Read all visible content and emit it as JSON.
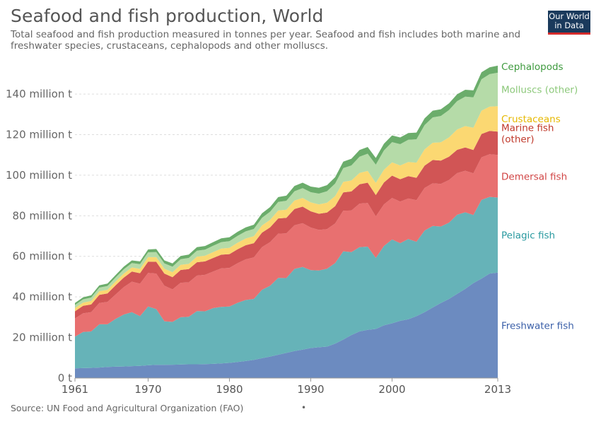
{
  "title": "Seafood and fish production, World",
  "subtitle": "Total seafood and fish production measured in tonnes per year. Seafood and fish includes both marine and freshwater species, crustaceans, cephalopods and other molluscs.",
  "logo": {
    "line1": "Our World",
    "line2": "in Data",
    "bg": "#1a3a5c",
    "accent": "#d42b2b"
  },
  "source": "Source: UN Food and Agricultural Organization (FAO)",
  "dot": "•",
  "chart_data": {
    "type": "area",
    "stacked": true,
    "x_ticks": [
      "1961",
      "1970",
      "1980",
      "1990",
      "2000",
      "2013"
    ],
    "y_ticks": [
      "0 t",
      "20 million t",
      "40 million t",
      "60 million t",
      "80 million t",
      "100 million t",
      "120 million t",
      "140 million t"
    ],
    "y_tick_values": [
      0,
      20,
      40,
      60,
      80,
      100,
      120,
      140
    ],
    "xlim": [
      1961,
      2013
    ],
    "ylim": [
      0,
      155
    ],
    "grid": true,
    "x": [
      1961,
      1962,
      1963,
      1964,
      1965,
      1966,
      1967,
      1968,
      1969,
      1970,
      1971,
      1972,
      1973,
      1974,
      1975,
      1976,
      1977,
      1978,
      1979,
      1980,
      1981,
      1982,
      1983,
      1984,
      1985,
      1986,
      1987,
      1988,
      1989,
      1990,
      1991,
      1992,
      1993,
      1994,
      1995,
      1996,
      1997,
      1998,
      1999,
      2000,
      2001,
      2002,
      2003,
      2004,
      2005,
      2006,
      2007,
      2008,
      2009,
      2010,
      2011,
      2012,
      2013
    ],
    "series": [
      {
        "name": "Freshwater fish",
        "color": "#6c8bc0",
        "label_color": "#3a5fa8",
        "values": [
          4.8,
          4.9,
          5.0,
          5.2,
          5.5,
          5.6,
          5.7,
          5.9,
          6.0,
          6.3,
          6.5,
          6.5,
          6.6,
          6.7,
          6.8,
          6.8,
          6.9,
          7.0,
          7.2,
          7.5,
          7.9,
          8.4,
          9.0,
          9.8,
          10.6,
          11.5,
          12.4,
          13.3,
          14.0,
          14.8,
          15.2,
          15.5,
          17.0,
          19.0,
          21.2,
          23.0,
          23.8,
          24.2,
          26.0,
          27.0,
          28.2,
          29.0,
          30.5,
          32.5,
          34.8,
          37.0,
          39.0,
          41.5,
          44.0,
          46.8,
          49.0,
          51.5,
          52.0
        ]
      },
      {
        "name": "Pelagic fish",
        "color": "#66b3b8",
        "label_color": "#2a9aa0",
        "values": [
          15.6,
          17.8,
          18.0,
          21.3,
          21.0,
          23.6,
          25.6,
          26.6,
          24.5,
          29.0,
          27.5,
          21.5,
          21.1,
          23.3,
          23.4,
          26.2,
          26.0,
          27.5,
          27.9,
          27.8,
          29.2,
          30.1,
          30.0,
          33.7,
          34.9,
          37.9,
          36.9,
          40.5,
          40.8,
          38.4,
          37.8,
          38.4,
          39.7,
          43.5,
          40.9,
          41.5,
          41.0,
          35.0,
          39.1,
          41.3,
          38.3,
          39.5,
          36.7,
          40.2,
          40.2,
          37.7,
          37.6,
          39.0,
          37.7,
          33.6,
          38.8,
          37.8,
          37.0
        ]
      },
      {
        "name": "Demersal fish",
        "color": "#e87070",
        "label_color": "#d14545",
        "values": [
          9.0,
          9.2,
          9.5,
          10.5,
          11.0,
          12.0,
          13.5,
          15.0,
          16.0,
          16.5,
          17.5,
          17.5,
          16.0,
          17.0,
          17.0,
          17.5,
          18.0,
          18.0,
          19.0,
          19.0,
          19.5,
          20.0,
          20.5,
          21.0,
          21.5,
          21.8,
          22.0,
          21.5,
          21.5,
          21.0,
          20.0,
          19.5,
          19.5,
          20.0,
          20.5,
          21.5,
          21.5,
          20.5,
          20.5,
          20.5,
          20.5,
          20.0,
          20.5,
          21.0,
          21.0,
          21.0,
          21.0,
          20.5,
          20.5,
          20.5,
          21.0,
          21.0,
          21.0
        ]
      },
      {
        "name": "Marine fish (other)",
        "color": "#d15555",
        "label_color": "#c0392b",
        "values": [
          3.5,
          3.7,
          3.8,
          4.0,
          4.2,
          4.5,
          4.7,
          5.0,
          5.2,
          5.6,
          5.8,
          6.0,
          6.0,
          6.3,
          6.5,
          6.6,
          6.6,
          6.7,
          6.7,
          6.8,
          6.9,
          7.0,
          7.0,
          7.2,
          7.3,
          7.5,
          7.7,
          8.0,
          8.2,
          8.0,
          8.0,
          8.2,
          8.5,
          9.0,
          9.4,
          9.5,
          10.0,
          10.5,
          10.8,
          11.0,
          11.0,
          11.0,
          11.0,
          11.0,
          11.5,
          11.5,
          11.5,
          11.5,
          11.5,
          11.5,
          11.5,
          11.5,
          11.5
        ]
      },
      {
        "name": "Crustaceans",
        "color": "#fbd872",
        "label_color": "#e6b800",
        "values": [
          1.6,
          1.6,
          1.7,
          1.8,
          1.8,
          1.9,
          2.0,
          2.0,
          2.1,
          2.2,
          2.3,
          2.4,
          2.5,
          2.5,
          2.6,
          2.7,
          2.8,
          2.9,
          3.0,
          3.1,
          3.2,
          3.3,
          3.4,
          3.5,
          3.7,
          3.9,
          4.0,
          4.2,
          4.3,
          4.4,
          4.6,
          4.8,
          5.0,
          5.2,
          5.4,
          5.6,
          5.8,
          6.0,
          6.3,
          6.5,
          6.8,
          7.0,
          7.5,
          8.0,
          8.5,
          9.0,
          9.5,
          10.0,
          10.5,
          11.0,
          11.5,
          12.0,
          12.5
        ]
      },
      {
        "name": "Molluscs (other)",
        "color": "#b5dba8",
        "label_color": "#8cc87a",
        "values": [
          1.5,
          1.6,
          1.7,
          1.8,
          1.9,
          2.0,
          2.1,
          2.2,
          2.3,
          2.4,
          2.5,
          2.6,
          2.7,
          2.8,
          2.9,
          3.0,
          3.0,
          3.1,
          3.2,
          3.3,
          3.4,
          3.5,
          3.6,
          3.8,
          4.0,
          4.2,
          4.4,
          4.6,
          4.8,
          5.0,
          5.3,
          5.7,
          6.2,
          6.8,
          7.4,
          8.0,
          8.5,
          9.0,
          9.5,
          10.0,
          10.5,
          11.0,
          11.5,
          12.0,
          12.5,
          13.0,
          13.5,
          14.0,
          14.5,
          15.0,
          15.5,
          16.0,
          16.5
        ]
      },
      {
        "name": "Cephalopods",
        "color": "#6bad6b",
        "label_color": "#3e9a3e",
        "values": [
          1.0,
          1.0,
          1.1,
          1.1,
          1.2,
          1.2,
          1.3,
          1.3,
          1.4,
          1.4,
          1.5,
          1.5,
          1.6,
          1.6,
          1.7,
          1.7,
          1.8,
          1.8,
          1.9,
          1.9,
          2.0,
          2.0,
          2.1,
          2.2,
          2.3,
          2.4,
          2.5,
          2.6,
          2.7,
          2.8,
          2.9,
          3.0,
          3.1,
          3.2,
          3.3,
          3.3,
          3.3,
          3.3,
          3.3,
          3.3,
          3.3,
          3.3,
          3.3,
          3.3,
          3.3,
          3.3,
          3.3,
          3.4,
          3.4,
          3.4,
          3.4,
          3.4,
          3.5
        ]
      }
    ]
  }
}
